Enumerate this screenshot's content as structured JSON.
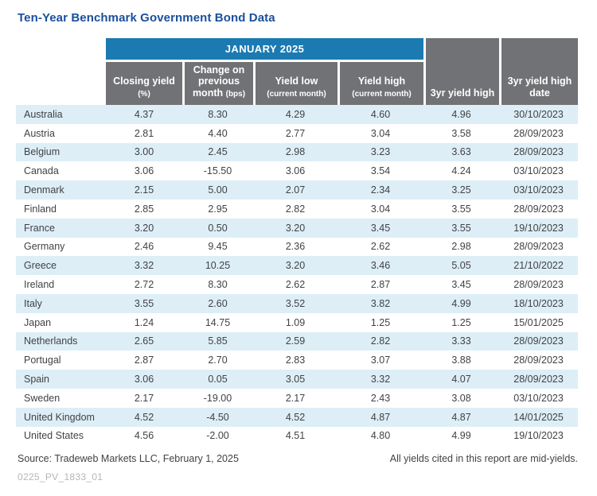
{
  "title": "Ten-Year Benchmark Government Bond Data",
  "table": {
    "banner": "JANUARY 2025",
    "columns": [
      {
        "label": "Closing yield",
        "sub": "(%)"
      },
      {
        "label": "Change on previous month",
        "sub": "(bps)"
      },
      {
        "label": "Yield low",
        "sub": "(current month)"
      },
      {
        "label": "Yield high",
        "sub": "(current month)"
      },
      {
        "label": "3yr yield high",
        "sub": ""
      },
      {
        "label": "3yr yield high date",
        "sub": ""
      }
    ],
    "rows": [
      {
        "country": "Australia",
        "closing_yield": "4.37",
        "change_bps": "8.30",
        "yield_low": "4.29",
        "yield_high": "4.60",
        "yr3_high": "4.96",
        "yr3_high_date": "30/10/2023"
      },
      {
        "country": "Austria",
        "closing_yield": "2.81",
        "change_bps": "4.40",
        "yield_low": "2.77",
        "yield_high": "3.04",
        "yr3_high": "3.58",
        "yr3_high_date": "28/09/2023"
      },
      {
        "country": "Belgium",
        "closing_yield": "3.00",
        "change_bps": "2.45",
        "yield_low": "2.98",
        "yield_high": "3.23",
        "yr3_high": "3.63",
        "yr3_high_date": "28/09/2023"
      },
      {
        "country": "Canada",
        "closing_yield": "3.06",
        "change_bps": "-15.50",
        "yield_low": "3.06",
        "yield_high": "3.54",
        "yr3_high": "4.24",
        "yr3_high_date": "03/10/2023"
      },
      {
        "country": "Denmark",
        "closing_yield": "2.15",
        "change_bps": "5.00",
        "yield_low": "2.07",
        "yield_high": "2.34",
        "yr3_high": "3.25",
        "yr3_high_date": "03/10/2023"
      },
      {
        "country": "Finland",
        "closing_yield": "2.85",
        "change_bps": "2.95",
        "yield_low": "2.82",
        "yield_high": "3.04",
        "yr3_high": "3.55",
        "yr3_high_date": "28/09/2023"
      },
      {
        "country": "France",
        "closing_yield": "3.20",
        "change_bps": "0.50",
        "yield_low": "3.20",
        "yield_high": "3.45",
        "yr3_high": "3.55",
        "yr3_high_date": "19/10/2023"
      },
      {
        "country": "Germany",
        "closing_yield": "2.46",
        "change_bps": "9.45",
        "yield_low": "2.36",
        "yield_high": "2.62",
        "yr3_high": "2.98",
        "yr3_high_date": "28/09/2023"
      },
      {
        "country": "Greece",
        "closing_yield": "3.32",
        "change_bps": "10.25",
        "yield_low": "3.20",
        "yield_high": "3.46",
        "yr3_high": "5.05",
        "yr3_high_date": "21/10/2022"
      },
      {
        "country": "Ireland",
        "closing_yield": "2.72",
        "change_bps": "8.30",
        "yield_low": "2.62",
        "yield_high": "2.87",
        "yr3_high": "3.45",
        "yr3_high_date": "28/09/2023"
      },
      {
        "country": "Italy",
        "closing_yield": "3.55",
        "change_bps": "2.60",
        "yield_low": "3.52",
        "yield_high": "3.82",
        "yr3_high": "4.99",
        "yr3_high_date": "18/10/2023"
      },
      {
        "country": "Japan",
        "closing_yield": "1.24",
        "change_bps": "14.75",
        "yield_low": "1.09",
        "yield_high": "1.25",
        "yr3_high": "1.25",
        "yr3_high_date": "15/01/2025"
      },
      {
        "country": "Netherlands",
        "closing_yield": "2.65",
        "change_bps": "5.85",
        "yield_low": "2.59",
        "yield_high": "2.82",
        "yr3_high": "3.33",
        "yr3_high_date": "28/09/2023"
      },
      {
        "country": "Portugal",
        "closing_yield": "2.87",
        "change_bps": "2.70",
        "yield_low": "2.83",
        "yield_high": "3.07",
        "yr3_high": "3.88",
        "yr3_high_date": "28/09/2023"
      },
      {
        "country": "Spain",
        "closing_yield": "3.06",
        "change_bps": "0.05",
        "yield_low": "3.05",
        "yield_high": "3.32",
        "yr3_high": "4.07",
        "yr3_high_date": "28/09/2023"
      },
      {
        "country": "Sweden",
        "closing_yield": "2.17",
        "change_bps": "-19.00",
        "yield_low": "2.17",
        "yield_high": "2.43",
        "yr3_high": "3.08",
        "yr3_high_date": "03/10/2023"
      },
      {
        "country": "United Kingdom",
        "closing_yield": "4.52",
        "change_bps": "-4.50",
        "yield_low": "4.52",
        "yield_high": "4.87",
        "yr3_high": "4.87",
        "yr3_high_date": "14/01/2025"
      },
      {
        "country": "United States",
        "closing_yield": "4.56",
        "change_bps": "-2.00",
        "yield_low": "4.51",
        "yield_high": "4.80",
        "yr3_high": "4.99",
        "yr3_high_date": "19/10/2023"
      }
    ]
  },
  "footer": {
    "source": "Source: Tradeweb Markets LLC, February 1, 2025",
    "note": "All yields cited in this report are mid-yields.",
    "watermark": "0225_PV_1833_01"
  },
  "colors": {
    "title_blue": "#1a4f9c",
    "banner_blue": "#1b7ab1",
    "header_gray": "#717275",
    "stripe_blue": "#ddeef7",
    "text_dark": "#414244",
    "watermark_gray": "#b4b6b8"
  }
}
